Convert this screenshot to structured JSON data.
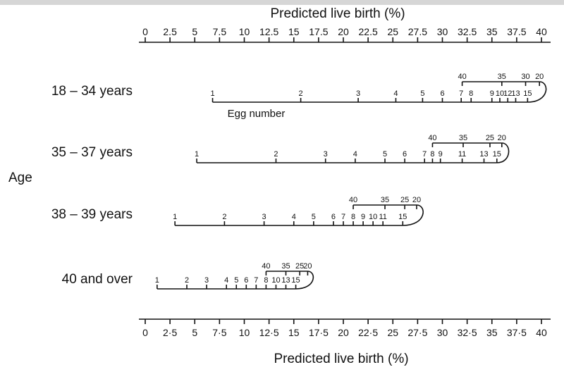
{
  "chart_data": {
    "type": "nomogram",
    "top_axis": {
      "title": "Predicted live birth (%)",
      "range": [
        0,
        40
      ],
      "ticks": [
        0,
        2.5,
        5,
        7.5,
        10,
        12.5,
        15,
        17.5,
        20,
        22.5,
        25,
        27.5,
        30,
        32.5,
        35,
        37.5,
        40
      ],
      "tick_labels": [
        "0",
        "2.5",
        "5",
        "7.5",
        "10",
        "12.5",
        "15",
        "17.5",
        "20",
        "22.5",
        "25",
        "27.5",
        "30",
        "32.5",
        "35",
        "37.5",
        "40"
      ]
    },
    "bottom_axis": {
      "title": "Predicted live birth (%)",
      "range": [
        0,
        40
      ],
      "ticks": [
        0,
        2.5,
        5,
        7.5,
        10,
        12.5,
        15,
        17.5,
        20,
        22.5,
        25,
        27.5,
        30,
        32.5,
        35,
        37.5,
        40
      ],
      "tick_labels": [
        "0",
        "2·5",
        "5",
        "7·5",
        "10",
        "12·5",
        "15",
        "17·5",
        "20",
        "22·5",
        "25",
        "27·5",
        "30",
        "32·5",
        "35",
        "37·5",
        "40"
      ]
    },
    "ylabel": "Age",
    "egg_scale_caption": "Egg number",
    "groups": [
      {
        "label": "18 – 34 years",
        "eggs": [
          {
            "n": "1",
            "x": 6.8
          },
          {
            "n": "2",
            "x": 15.7
          },
          {
            "n": "3",
            "x": 21.5
          },
          {
            "n": "4",
            "x": 25.3
          },
          {
            "n": "5",
            "x": 28.0
          },
          {
            "n": "6",
            "x": 30.0
          },
          {
            "n": "7",
            "x": 31.9
          },
          {
            "n": "8",
            "x": 32.9
          },
          {
            "n": "9",
            "x": 35.0
          },
          {
            "n": "10",
            "x": 35.8
          },
          {
            "n": "12",
            "x": 36.6
          },
          {
            "n": "13",
            "x": 37.4
          },
          {
            "n": "15",
            "x": 38.6
          }
        ],
        "amh": [
          {
            "n": "40",
            "x": 32.0
          },
          {
            "n": "35",
            "x": 36.0
          },
          {
            "n": "30",
            "x": 38.4
          },
          {
            "n": "20",
            "x": 39.8
          }
        ]
      },
      {
        "label": "35 – 37 years",
        "eggs": [
          {
            "n": "1",
            "x": 5.2
          },
          {
            "n": "2",
            "x": 13.2
          },
          {
            "n": "3",
            "x": 18.2
          },
          {
            "n": "4",
            "x": 21.2
          },
          {
            "n": "5",
            "x": 24.2
          },
          {
            "n": "6",
            "x": 26.2
          },
          {
            "n": "7",
            "x": 28.2
          },
          {
            "n": "8",
            "x": 29.0
          },
          {
            "n": "9",
            "x": 29.8
          },
          {
            "n": "11",
            "x": 32.0
          },
          {
            "n": "13",
            "x": 34.2
          },
          {
            "n": "15",
            "x": 35.5
          }
        ],
        "amh": [
          {
            "n": "40",
            "x": 29.0
          },
          {
            "n": "35",
            "x": 32.1
          },
          {
            "n": "25",
            "x": 34.8
          },
          {
            "n": "20",
            "x": 36.0
          }
        ]
      },
      {
        "label": "38 – 39 years",
        "eggs": [
          {
            "n": "1",
            "x": 3.0
          },
          {
            "n": "2",
            "x": 8.0
          },
          {
            "n": "3",
            "x": 12.0
          },
          {
            "n": "4",
            "x": 15.0
          },
          {
            "n": "5",
            "x": 17.0
          },
          {
            "n": "6",
            "x": 19.0
          },
          {
            "n": "7",
            "x": 20.0
          },
          {
            "n": "8",
            "x": 21.0
          },
          {
            "n": "9",
            "x": 22.0
          },
          {
            "n": "10",
            "x": 23.0
          },
          {
            "n": "11",
            "x": 24.0
          },
          {
            "n": "15",
            "x": 26.0
          }
        ],
        "amh": [
          {
            "n": "40",
            "x": 21.0
          },
          {
            "n": "35",
            "x": 24.2
          },
          {
            "n": "25",
            "x": 26.2
          },
          {
            "n": "20",
            "x": 27.4
          }
        ]
      },
      {
        "label": "40 and over",
        "eggs": [
          {
            "n": "1",
            "x": 1.2
          },
          {
            "n": "2",
            "x": 4.2
          },
          {
            "n": "3",
            "x": 6.2
          },
          {
            "n": "4",
            "x": 8.2
          },
          {
            "n": "5",
            "x": 9.2
          },
          {
            "n": "6",
            "x": 10.2
          },
          {
            "n": "7",
            "x": 11.2
          },
          {
            "n": "8",
            "x": 12.2
          },
          {
            "n": "10",
            "x": 13.2
          },
          {
            "n": "13",
            "x": 14.2
          },
          {
            "n": "15",
            "x": 15.2
          }
        ],
        "amh": [
          {
            "n": "40",
            "x": 12.2
          },
          {
            "n": "35",
            "x": 14.2
          },
          {
            "n": "25",
            "x": 15.6
          },
          {
            "n": "20",
            "x": 16.4
          }
        ]
      }
    ]
  }
}
